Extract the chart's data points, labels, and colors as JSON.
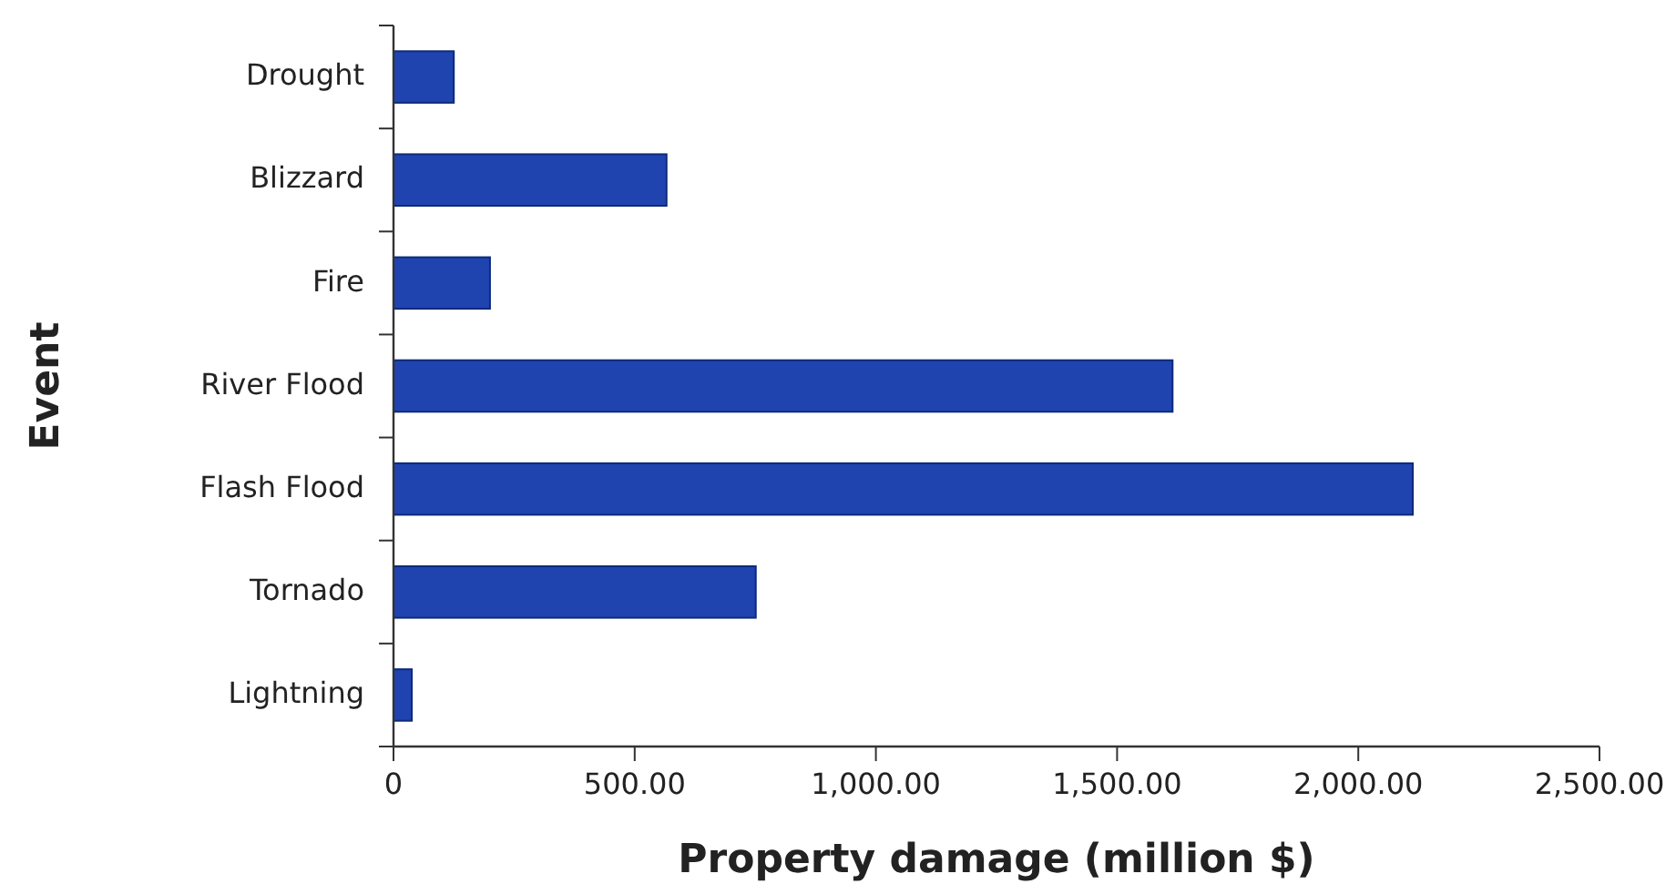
{
  "chart_data": {
    "type": "bar",
    "orientation": "horizontal",
    "xlabel": "Property damage (million $)",
    "ylabel": "Event",
    "categories": [
      "Drought",
      "Blizzard",
      "Fire",
      "River Flood",
      "Flash Flood",
      "Tornado",
      "Lightning"
    ],
    "values": [
      125,
      566,
      200,
      1615,
      2113,
      751,
      38
    ],
    "color": "#1f44b0",
    "xlim": [
      0,
      2500
    ],
    "xticks": [
      0,
      {
        "value": 500,
        "label": "500.00"
      },
      {
        "value": 1000,
        "label": "1,000.00"
      },
      {
        "value": 1500,
        "label": "1,500.00"
      },
      {
        "value": 2000,
        "label": "2,000.00"
      },
      {
        "value": 2500,
        "label": "2,500.00"
      }
    ],
    "grid": false
  }
}
